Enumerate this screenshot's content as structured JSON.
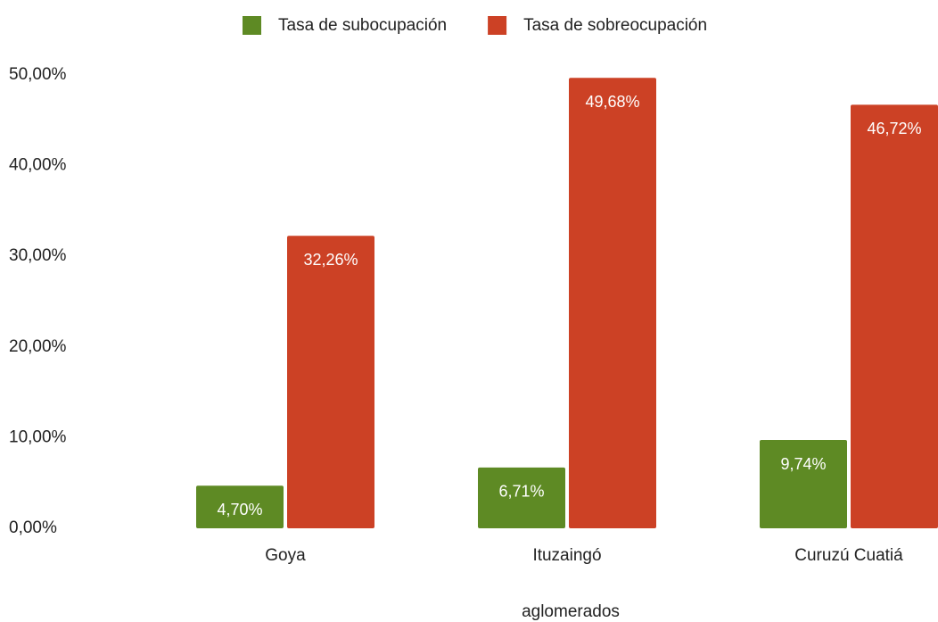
{
  "chart_data": {
    "type": "bar",
    "x_label": "aglomerados",
    "categories": [
      "Goya",
      "Ituzaingó",
      "Curuzú Cuatiá"
    ],
    "series": [
      {
        "name": "Tasa de subocupación",
        "color": "#5e8a24",
        "values": [
          4.7,
          6.71,
          9.74
        ],
        "value_labels": [
          "4,70%",
          "6,71%",
          "9,74%"
        ]
      },
      {
        "name": "Tasa de sobreocupación",
        "color": "#cc4125",
        "values": [
          32.26,
          49.68,
          46.72
        ],
        "value_labels": [
          "32,26%",
          "49,68%",
          "46,72%"
        ]
      }
    ],
    "ylim": [
      0,
      50
    ],
    "yticks": [
      {
        "value": 0,
        "label": "0,00%"
      },
      {
        "value": 10,
        "label": "10,00%"
      },
      {
        "value": 20,
        "label": "20,00%"
      },
      {
        "value": 30,
        "label": "30,00%"
      },
      {
        "value": 40,
        "label": "40,00%"
      },
      {
        "value": 50,
        "label": "50,00%"
      }
    ],
    "grid": false,
    "legend": "top"
  }
}
